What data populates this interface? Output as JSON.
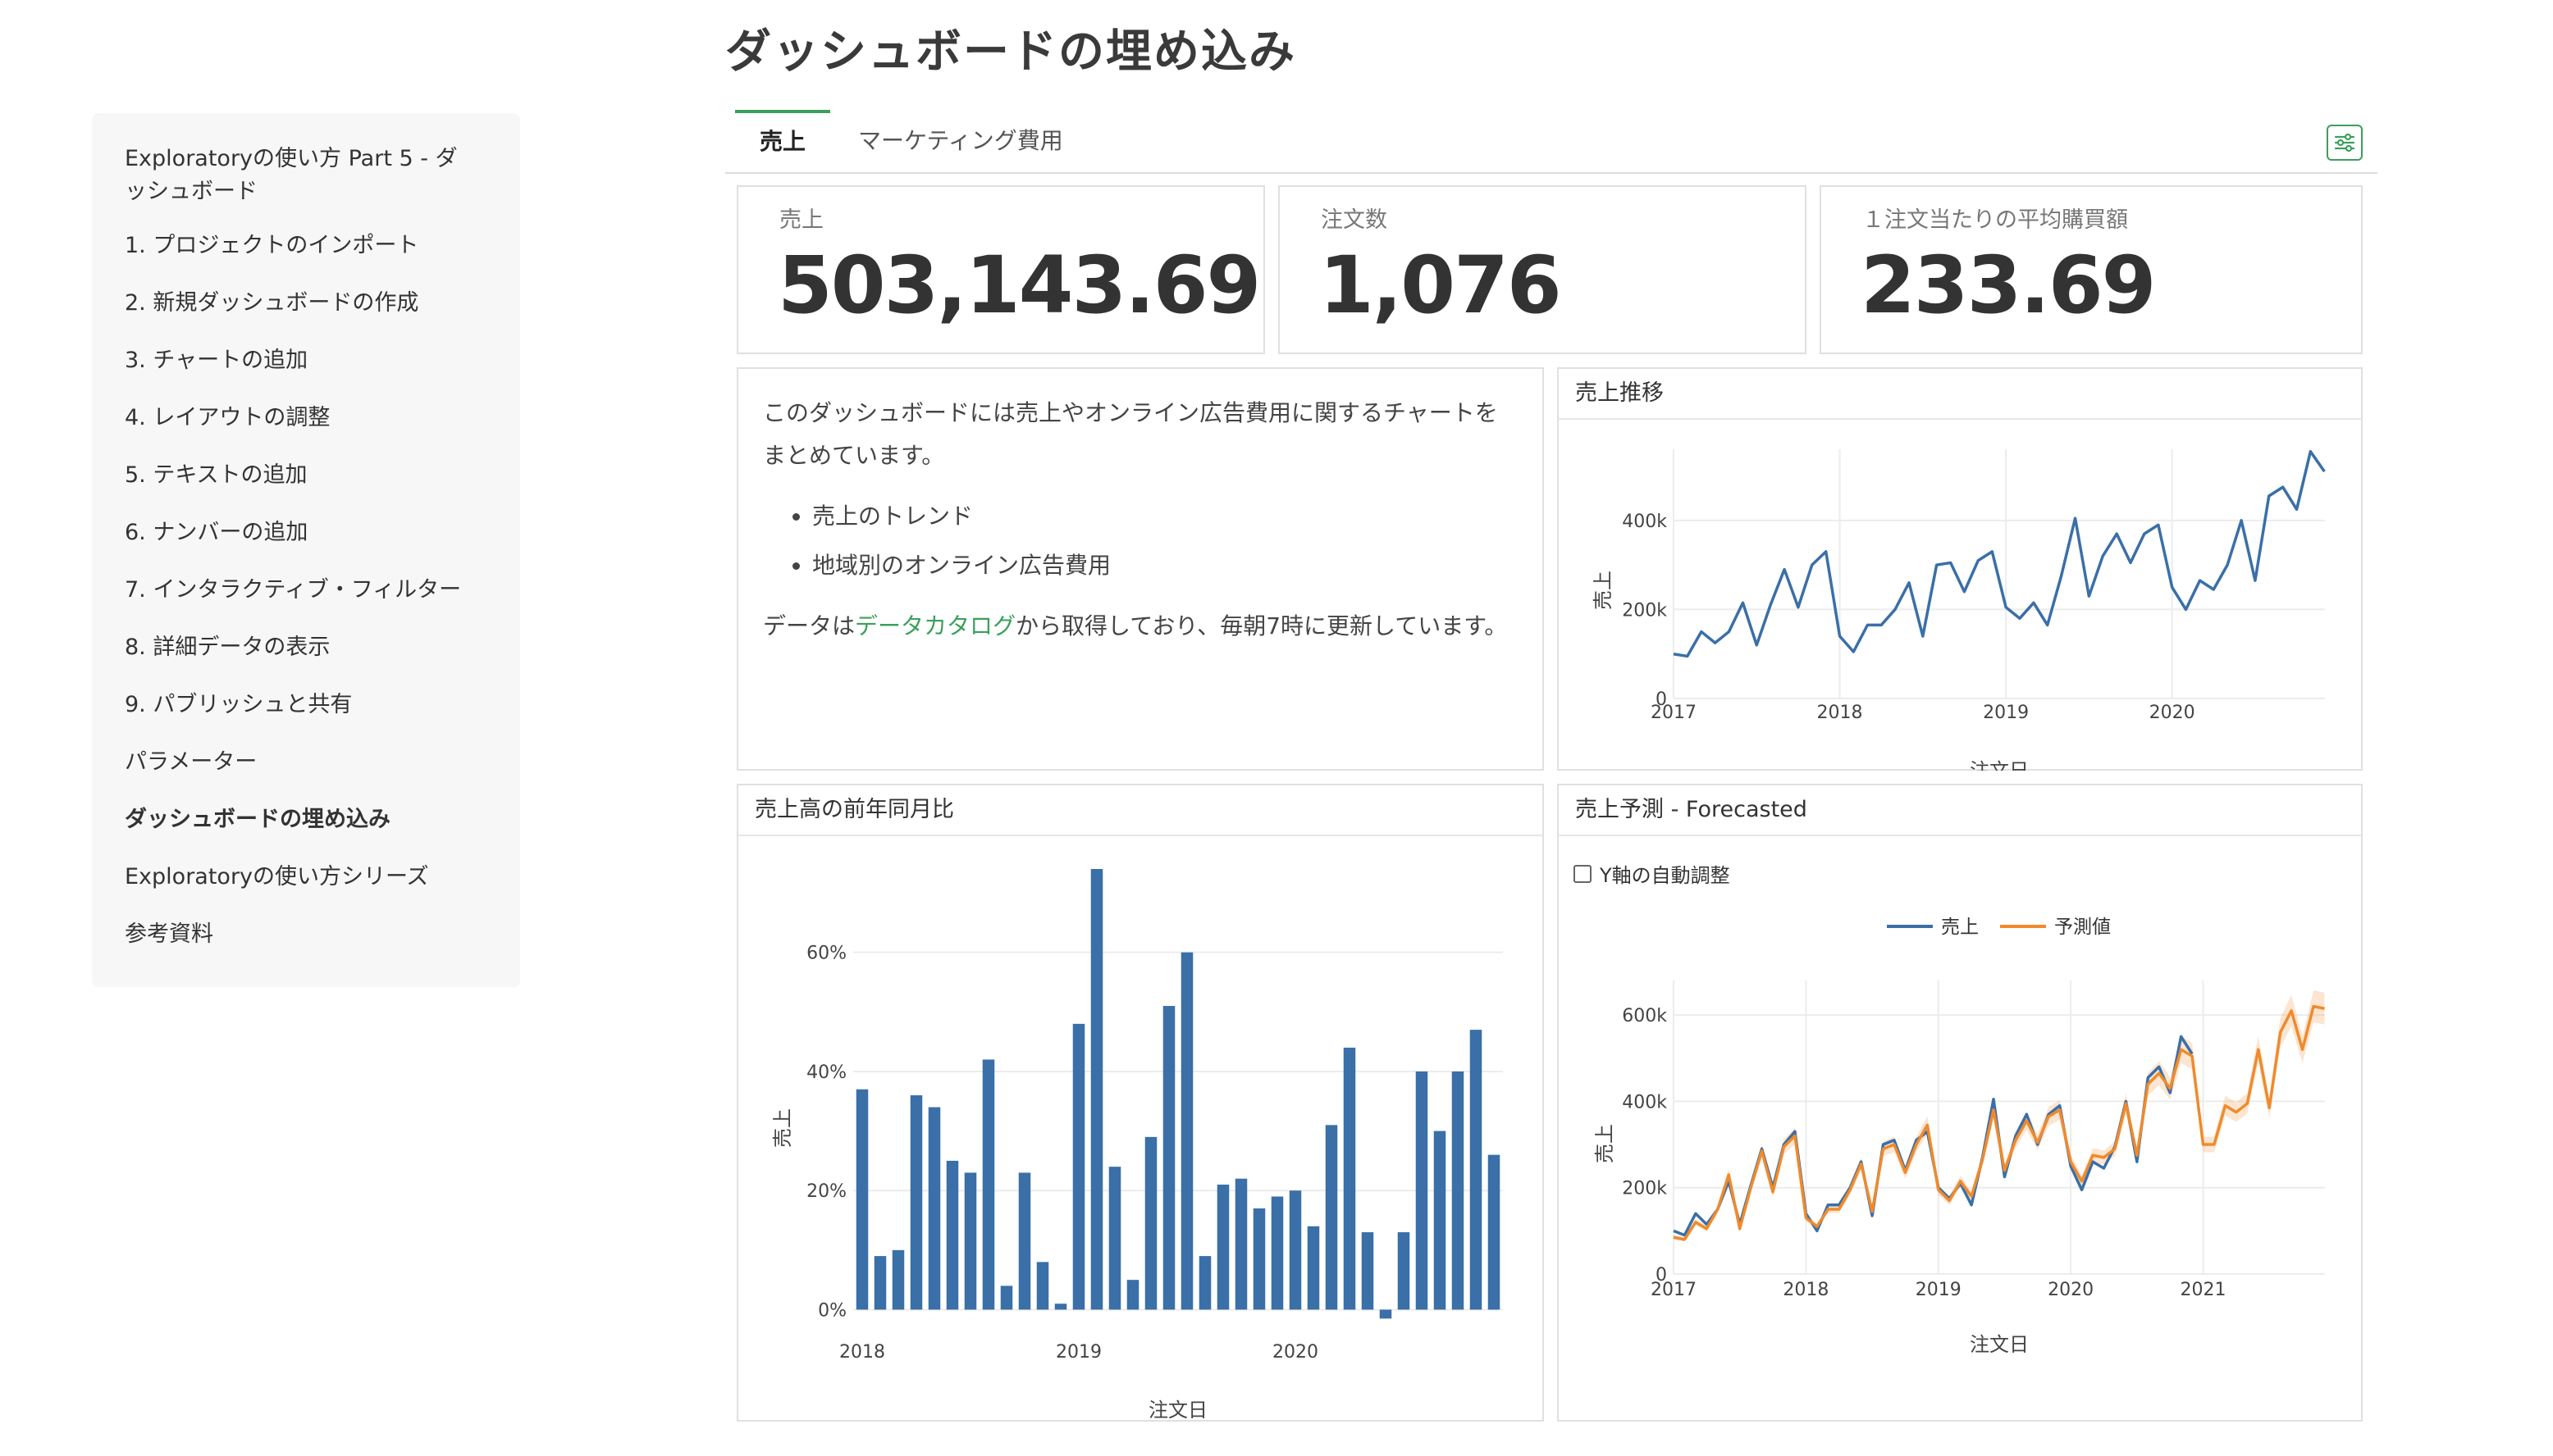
{
  "title": "ダッシュボードの埋め込み",
  "sidebar": {
    "items": [
      {
        "label": "Exploratoryの使い方 Part 5 - ダッシュボード",
        "active": false
      },
      {
        "label": "1. プロジェクトのインポート",
        "active": false
      },
      {
        "label": "2. 新規ダッシュボードの作成",
        "active": false
      },
      {
        "label": "3. チャートの追加",
        "active": false
      },
      {
        "label": "4. レイアウトの調整",
        "active": false
      },
      {
        "label": "5. テキストの追加",
        "active": false
      },
      {
        "label": "6. ナンバーの追加",
        "active": false
      },
      {
        "label": "7. インタラクティブ・フィルター",
        "active": false
      },
      {
        "label": "8. 詳細データの表示",
        "active": false
      },
      {
        "label": "9. パブリッシュと共有",
        "active": false
      },
      {
        "label": "パラメーター",
        "active": false
      },
      {
        "label": "ダッシュボードの埋め込み",
        "active": true
      },
      {
        "label": "Exploratoryの使い方シリーズ",
        "active": false
      },
      {
        "label": "参考資料",
        "active": false
      }
    ]
  },
  "tabs": [
    {
      "label": "売上",
      "active": true
    },
    {
      "label": "マーケティング費用",
      "active": false
    }
  ],
  "toolbar": {
    "settings_icon": "sliders-icon",
    "accent": "#3aa05b"
  },
  "kpis": [
    {
      "label": "売上",
      "value": "503,143.69"
    },
    {
      "label": "注文数",
      "value": "1,076"
    },
    {
      "label": "１注文当たりの平均購買額",
      "value": "233.69"
    }
  ],
  "text_panel": {
    "intro": "このダッシュボードには売上やオンライン広告費用に関するチャートをまとめています。",
    "bullets": [
      "売上のトレンド",
      "地域別のオンライン広告費用"
    ],
    "footer_pre": "データは",
    "footer_link": "データカタログ",
    "footer_post": "から取得しており、毎朝7時に更新しています。"
  },
  "panels": {
    "trend_title": "売上推移",
    "yoy_title": "売上高の前年同月比",
    "forecast_title": "売上予測 - Forecasted",
    "forecast_checkbox": "Y軸の自動調整"
  },
  "chart_data": [
    {
      "type": "line",
      "title": "売上推移",
      "xlabel": "注文日",
      "ylabel": "売上",
      "x_ticks": [
        "2017",
        "2018",
        "2019",
        "2020"
      ],
      "y_ticks": [
        "0",
        "200k",
        "400k"
      ],
      "x_range": [
        2017.0,
        2020.92
      ],
      "ylim": [
        0,
        560000
      ],
      "color": "#3a6fa8",
      "x": [
        2017.0,
        2017.083,
        2017.167,
        2017.25,
        2017.333,
        2017.417,
        2017.5,
        2017.583,
        2017.667,
        2017.75,
        2017.833,
        2017.917,
        2018.0,
        2018.083,
        2018.167,
        2018.25,
        2018.333,
        2018.417,
        2018.5,
        2018.583,
        2018.667,
        2018.75,
        2018.833,
        2018.917,
        2019.0,
        2019.083,
        2019.167,
        2019.25,
        2019.333,
        2019.417,
        2019.5,
        2019.583,
        2019.667,
        2019.75,
        2019.833,
        2019.917,
        2020.0,
        2020.083,
        2020.167,
        2020.25,
        2020.333,
        2020.417,
        2020.5,
        2020.583,
        2020.667,
        2020.75,
        2020.833,
        2020.917
      ],
      "values": [
        100000,
        95000,
        150000,
        125000,
        150000,
        215000,
        120000,
        210000,
        290000,
        205000,
        300000,
        330000,
        140000,
        105000,
        165000,
        165000,
        200000,
        260000,
        140000,
        300000,
        305000,
        240000,
        310000,
        330000,
        205000,
        180000,
        215000,
        165000,
        275000,
        405000,
        230000,
        320000,
        370000,
        305000,
        370000,
        390000,
        250000,
        200000,
        265000,
        245000,
        300000,
        400000,
        265000,
        455000,
        475000,
        425000,
        555000,
        510000
      ]
    },
    {
      "type": "bar",
      "title": "売上高の前年同月比",
      "xlabel": "注文日",
      "ylabel": "売上",
      "x_ticks": [
        "2018",
        "2019",
        "2020"
      ],
      "y_ticks": [
        "0%",
        "20%",
        "40%",
        "60%"
      ],
      "ylim": [
        -2,
        74
      ],
      "color": "#3a6fa8",
      "values": [
        37,
        9,
        10,
        36,
        34,
        25,
        23,
        42,
        4,
        23,
        8,
        1,
        48,
        74,
        24,
        5,
        29,
        51,
        60,
        9,
        21,
        22,
        17,
        19,
        20,
        14,
        31,
        44,
        13,
        -1.5,
        13,
        40,
        30,
        40,
        47,
        26
      ]
    },
    {
      "type": "line",
      "title": "売上予測 - Forecasted",
      "xlabel": "注文日",
      "ylabel": "売上",
      "x_ticks": [
        "2017",
        "2018",
        "2019",
        "2020",
        "2021"
      ],
      "y_ticks": [
        "0",
        "200k",
        "400k",
        "600k"
      ],
      "x_range": [
        2017.0,
        2021.92
      ],
      "ylim": [
        0,
        680000
      ],
      "legend": "top-center",
      "series": [
        {
          "name": "売上",
          "color": "#3a6fa8",
          "values": [
            100000,
            90000,
            140000,
            115000,
            150000,
            215000,
            115000,
            205000,
            290000,
            200000,
            300000,
            330000,
            140000,
            100000,
            160000,
            160000,
            200000,
            260000,
            135000,
            300000,
            310000,
            240000,
            310000,
            330000,
            200000,
            175000,
            210000,
            160000,
            270000,
            405000,
            225000,
            320000,
            370000,
            300000,
            370000,
            390000,
            250000,
            195000,
            260000,
            245000,
            295000,
            400000,
            260000,
            455000,
            480000,
            420000,
            550000,
            510000
          ]
        },
        {
          "name": "予測値",
          "color": "#f08a2c",
          "values": [
            85000,
            80000,
            120000,
            105000,
            150000,
            230000,
            105000,
            200000,
            285000,
            190000,
            295000,
            320000,
            130000,
            110000,
            150000,
            150000,
            195000,
            255000,
            145000,
            290000,
            300000,
            235000,
            300000,
            345000,
            195000,
            170000,
            215000,
            180000,
            265000,
            380000,
            240000,
            310000,
            355000,
            305000,
            365000,
            380000,
            260000,
            215000,
            275000,
            270000,
            290000,
            395000,
            275000,
            440000,
            465000,
            430000,
            520000,
            505000,
            300000,
            300000,
            390000,
            375000,
            395000,
            520000,
            385000,
            560000,
            610000,
            520000,
            620000,
            615000
          ]
        }
      ]
    }
  ]
}
